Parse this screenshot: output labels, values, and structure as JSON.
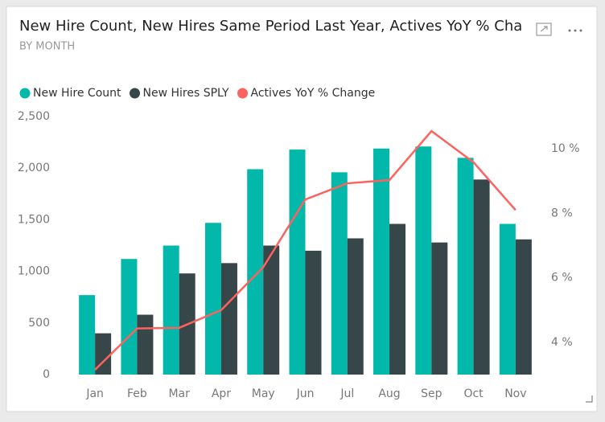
{
  "chart_data": {
    "type": "bar_line",
    "title": "New Hire Count, New Hires Same Period Last Year, Actives YoY % Cha",
    "subtitle": "BY MONTH",
    "categories": [
      "Jan",
      "Feb",
      "Mar",
      "Apr",
      "May",
      "Jun",
      "Jul",
      "Aug",
      "Sep",
      "Oct",
      "Nov"
    ],
    "series": [
      {
        "name": "New Hire Count",
        "color": "#01B8AA",
        "type": "bar",
        "values": [
          770,
          1120,
          1250,
          1470,
          1990,
          2180,
          1960,
          2190,
          2210,
          2100,
          1460
        ]
      },
      {
        "name": "New Hires SPLY",
        "color": "#374649",
        "type": "bar",
        "values": [
          400,
          580,
          980,
          1080,
          1250,
          1200,
          1320,
          1460,
          1280,
          1890,
          1310
        ]
      },
      {
        "name": "Actives YoY % Change",
        "color": "#FD625E",
        "type": "line",
        "axis": "y2",
        "values": [
          3.15,
          4.43,
          4.45,
          5.0,
          6.33,
          8.43,
          8.93,
          9.03,
          10.55,
          9.58,
          8.1
        ]
      }
    ],
    "ylim": [
      0,
      2500
    ],
    "yticks": [
      0,
      500,
      {
        "value": 1000,
        "label": "1,000"
      },
      {
        "value": 1500,
        "label": "1,500"
      },
      {
        "value": 2000,
        "label": "2,000"
      },
      {
        "value": 2500,
        "label": "2,500"
      }
    ],
    "y2lim": [
      3,
      11
    ],
    "y2ticks": [
      {
        "value": 4,
        "label": "4 %"
      },
      {
        "value": 6,
        "label": "6 %"
      },
      {
        "value": 8,
        "label": "8 %"
      },
      {
        "value": 10,
        "label": "10 %"
      }
    ],
    "legend": "top-left"
  }
}
